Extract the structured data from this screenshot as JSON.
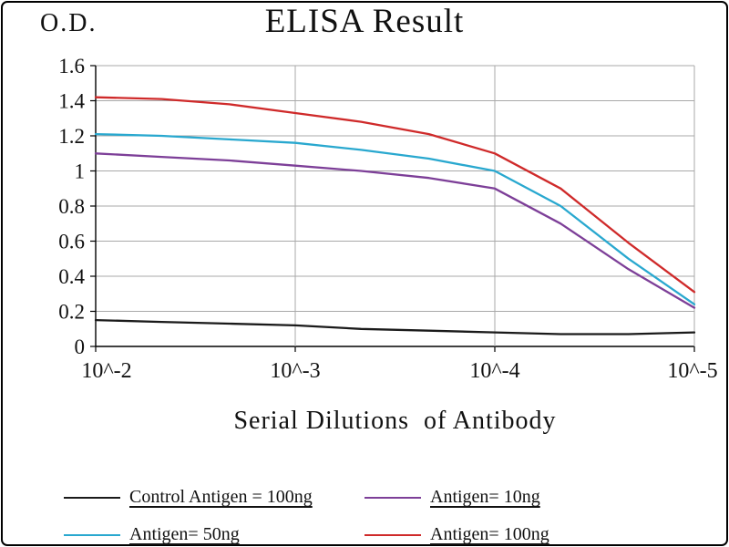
{
  "figure": {
    "background": "#ffffff",
    "border_color": "#000000",
    "grid_color": "#a8a8a8",
    "axis_color": "#000000"
  },
  "chart_data": {
    "type": "line",
    "title": "ELISA Result",
    "ylabel": "O.D.",
    "xlabel": "Serial Dilutions  of Antibody",
    "legend_position": "bottom",
    "grid": true,
    "x_tick_labels": [
      "10^-2",
      "10^-3",
      "10^-4",
      "10^-5"
    ],
    "x_tick_log": [
      -2,
      -3,
      -4,
      -5
    ],
    "y_tick_labels": [
      "0",
      "0.2",
      "0.4",
      "0.6",
      "0.8",
      "1",
      "1.2",
      "1.4",
      "1.6"
    ],
    "y_tick_values": [
      0,
      0.2,
      0.4,
      0.6,
      0.8,
      1,
      1.2,
      1.4,
      1.6
    ],
    "ylim": [
      0,
      1.6
    ],
    "x_log": [
      -2,
      -2.33,
      -2.67,
      -3,
      -3.33,
      -3.67,
      -4,
      -4.33,
      -4.67,
      -5
    ],
    "series": [
      {
        "name": "Control Antigen = 100ng",
        "color": "#1a1a1a",
        "values": [
          0.15,
          0.14,
          0.13,
          0.12,
          0.1,
          0.09,
          0.08,
          0.07,
          0.07,
          0.08
        ]
      },
      {
        "name": "Antigen= 10ng",
        "color": "#7d3f98",
        "values": [
          1.1,
          1.08,
          1.06,
          1.03,
          1.0,
          0.96,
          0.9,
          0.7,
          0.44,
          0.22
        ]
      },
      {
        "name": "Antigen= 50ng",
        "color": "#29a8cf",
        "values": [
          1.21,
          1.2,
          1.18,
          1.16,
          1.12,
          1.07,
          1.0,
          0.8,
          0.5,
          0.24
        ]
      },
      {
        "name": "Antigen= 100ng",
        "color": "#cf2a2a",
        "values": [
          1.42,
          1.41,
          1.38,
          1.33,
          1.28,
          1.21,
          1.1,
          0.9,
          0.59,
          0.31
        ]
      }
    ]
  }
}
